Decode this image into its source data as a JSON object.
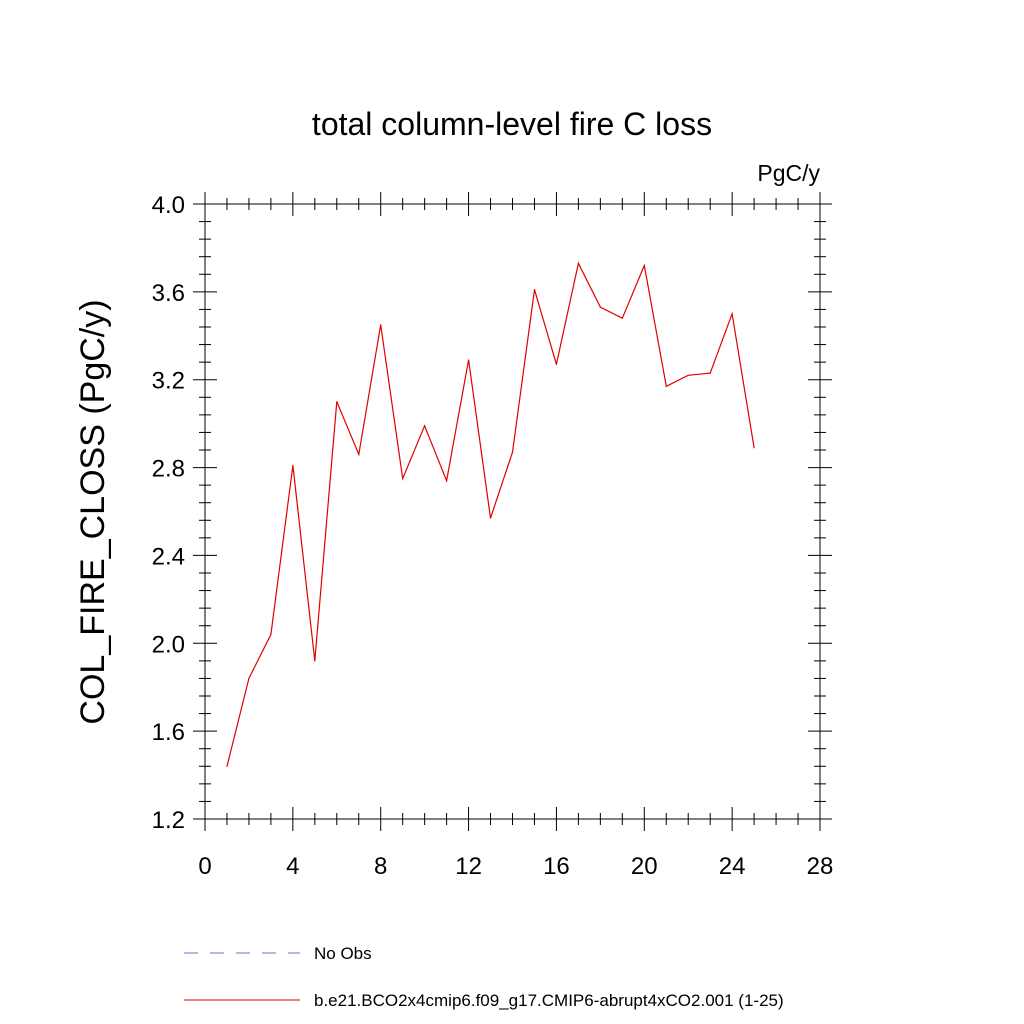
{
  "chart_data": {
    "type": "line",
    "title": "total column-level fire C loss",
    "units_label": "PgC/y",
    "ylabel": "COL_FIRE_CLOSS  (PgC/y)",
    "xlabel": "",
    "xlim": [
      0,
      28
    ],
    "ylim": [
      1.2,
      4.0
    ],
    "x_ticks": [
      0,
      4,
      8,
      12,
      16,
      20,
      24,
      28
    ],
    "x_tick_labels": [
      "0",
      "4",
      "8",
      "12",
      "16",
      "20",
      "24",
      "28"
    ],
    "y_ticks": [
      1.2,
      1.6,
      2.0,
      2.4,
      2.8,
      3.2,
      3.6,
      4.0
    ],
    "y_tick_labels": [
      "1.2",
      "1.6",
      "2.0",
      "2.4",
      "2.8",
      "3.2",
      "3.6",
      "4.0"
    ],
    "grid": false,
    "legend_position": "bottom",
    "series": [
      {
        "name": "No Obs",
        "color": "#7b68c8",
        "style": "dashed",
        "x": [],
        "y": []
      },
      {
        "name": "b.e21.BCO2x4cmip6.f09_g17.CMIP6-abrupt4xCO2.001 (1-25)",
        "color": "#e00000",
        "style": "solid",
        "x": [
          1,
          2,
          3,
          4,
          5,
          6,
          7,
          8,
          9,
          10,
          11,
          12,
          13,
          14,
          15,
          16,
          17,
          18,
          19,
          20,
          21,
          22,
          23,
          24,
          25
        ],
        "y": [
          1.44,
          1.84,
          2.04,
          2.81,
          1.92,
          3.1,
          2.86,
          3.45,
          2.75,
          2.99,
          2.74,
          3.29,
          2.57,
          2.87,
          3.61,
          3.27,
          3.73,
          3.53,
          3.48,
          3.72,
          3.17,
          3.22,
          3.23,
          3.5,
          2.89
        ]
      }
    ]
  }
}
